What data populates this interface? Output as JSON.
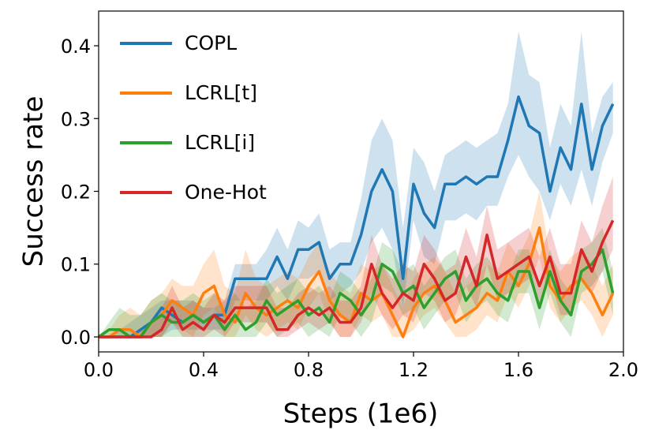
{
  "chart_data": {
    "type": "line",
    "x_label": "Steps (1e6)",
    "y_label": "Success rate",
    "x": [
      0,
      0.04,
      0.08,
      0.12,
      0.16,
      0.2,
      0.24,
      0.28,
      0.32,
      0.36,
      0.4,
      0.44,
      0.48,
      0.52,
      0.56,
      0.6,
      0.64,
      0.68,
      0.72,
      0.76,
      0.8,
      0.84,
      0.88,
      0.92,
      0.96,
      1.0,
      1.04,
      1.08,
      1.12,
      1.16,
      1.2,
      1.24,
      1.28,
      1.32,
      1.36,
      1.4,
      1.44,
      1.48,
      1.52,
      1.56,
      1.6,
      1.64,
      1.68,
      1.72,
      1.76,
      1.8,
      1.84,
      1.88,
      1.92,
      1.96
    ],
    "xlim": [
      0,
      2.0
    ],
    "ylim": [
      -0.0206,
      0.4477
    ],
    "xticks": [
      {
        "value": 0,
        "label": "0.0"
      },
      0.4,
      0.8,
      1.2,
      1.6,
      {
        "value": 2.0,
        "label": "2.0"
      }
    ],
    "yticks": [
      {
        "value": 0,
        "label": "0.0"
      },
      0.1,
      0.2,
      0.3,
      0.4
    ],
    "legend": "upper left",
    "series": [
      {
        "name": "COPL",
        "color": "#1f77b4",
        "values": [
          0,
          0,
          0,
          0,
          0.01,
          0.02,
          0.04,
          0.03,
          0.02,
          0.03,
          0.02,
          0.03,
          0.03,
          0.08,
          0.08,
          0.08,
          0.08,
          0.11,
          0.08,
          0.12,
          0.12,
          0.13,
          0.08,
          0.1,
          0.1,
          0.14,
          0.2,
          0.23,
          0.2,
          0.08,
          0.21,
          0.17,
          0.15,
          0.21,
          0.21,
          0.22,
          0.21,
          0.22,
          0.22,
          0.27,
          0.33,
          0.29,
          0.28,
          0.2,
          0.26,
          0.23,
          0.32,
          0.23,
          0.29,
          0.32
        ],
        "lower": [
          0,
          0,
          0,
          0,
          0,
          0,
          0,
          0.01,
          0.01,
          0.01,
          0.01,
          0.01,
          0.01,
          0.05,
          0.05,
          0.05,
          0.05,
          0.07,
          0.05,
          0.08,
          0.08,
          0.09,
          0.05,
          0.06,
          0.07,
          0.09,
          0.13,
          0.15,
          0.12,
          0.04,
          0.16,
          0.11,
          0.1,
          0.16,
          0.16,
          0.17,
          0.16,
          0.18,
          0.18,
          0.22,
          0.25,
          0.22,
          0.2,
          0.16,
          0.21,
          0.18,
          0.23,
          0.18,
          0.24,
          0.28
        ],
        "upper": [
          0,
          0,
          0.01,
          0.02,
          0.03,
          0.04,
          0.05,
          0.05,
          0.05,
          0.05,
          0.04,
          0.04,
          0.05,
          0.1,
          0.1,
          0.1,
          0.12,
          0.15,
          0.12,
          0.16,
          0.15,
          0.17,
          0.12,
          0.13,
          0.13,
          0.19,
          0.27,
          0.3,
          0.27,
          0.15,
          0.26,
          0.24,
          0.2,
          0.25,
          0.26,
          0.27,
          0.26,
          0.27,
          0.28,
          0.32,
          0.42,
          0.36,
          0.35,
          0.26,
          0.32,
          0.29,
          0.42,
          0.28,
          0.33,
          0.35
        ]
      },
      {
        "name": "LCRL[t]",
        "color": "#ff7f0e",
        "values": [
          0,
          0,
          0.01,
          0.01,
          0,
          0.02,
          0.03,
          0.05,
          0.04,
          0.03,
          0.06,
          0.07,
          0.03,
          0.02,
          0.06,
          0.04,
          0.03,
          0.04,
          0.05,
          0.04,
          0.07,
          0.09,
          0.05,
          0.03,
          0.02,
          0.06,
          0.05,
          0.06,
          0.03,
          0.0,
          0.04,
          0.06,
          0.07,
          0.05,
          0.02,
          0.03,
          0.04,
          0.06,
          0.05,
          0.09,
          0.07,
          0.1,
          0.15,
          0.07,
          0.05,
          0.07,
          0.08,
          0.06,
          0.03,
          0.06
        ],
        "lower": [
          0,
          0,
          0,
          0,
          0,
          0,
          0,
          0.02,
          0.01,
          0,
          0.03,
          0.04,
          0,
          0,
          0.03,
          0.01,
          0,
          0.01,
          0.02,
          0.01,
          0.04,
          0.06,
          0.02,
          0,
          0,
          0.03,
          0.02,
          0.03,
          0,
          0,
          0.01,
          0.03,
          0.04,
          0.02,
          0,
          0,
          0.01,
          0.03,
          0.02,
          0.06,
          0.04,
          0.07,
          0.11,
          0.04,
          0.02,
          0.04,
          0.05,
          0.03,
          0,
          0.03
        ],
        "upper": [
          0,
          0.01,
          0.03,
          0.04,
          0.03,
          0.05,
          0.06,
          0.08,
          0.07,
          0.07,
          0.1,
          0.12,
          0.07,
          0.06,
          0.12,
          0.08,
          0.07,
          0.08,
          0.09,
          0.08,
          0.11,
          0.13,
          0.09,
          0.07,
          0.06,
          0.1,
          0.09,
          0.1,
          0.07,
          0.04,
          0.08,
          0.1,
          0.11,
          0.09,
          0.06,
          0.07,
          0.08,
          0.1,
          0.09,
          0.13,
          0.11,
          0.14,
          0.2,
          0.11,
          0.09,
          0.11,
          0.12,
          0.1,
          0.07,
          0.1
        ]
      },
      {
        "name": "LCRL[i]",
        "color": "#2ca02c",
        "values": [
          0,
          0.01,
          0.01,
          0,
          0,
          0.02,
          0.03,
          0.02,
          0.02,
          0.03,
          0.02,
          0.03,
          0.01,
          0.03,
          0.01,
          0.02,
          0.05,
          0.03,
          0.04,
          0.05,
          0.03,
          0.04,
          0.02,
          0.06,
          0.05,
          0.03,
          0.05,
          0.1,
          0.09,
          0.06,
          0.07,
          0.04,
          0.06,
          0.08,
          0.09,
          0.05,
          0.07,
          0.08,
          0.06,
          0.05,
          0.09,
          0.09,
          0.04,
          0.09,
          0.05,
          0.03,
          0.09,
          0.1,
          0.12,
          0.06
        ],
        "lower": [
          0,
          0,
          0,
          0,
          0,
          0,
          0,
          0,
          0,
          0,
          0,
          0,
          0,
          0,
          0,
          0,
          0.02,
          0,
          0.01,
          0.02,
          0,
          0.01,
          0,
          0.03,
          0.02,
          0,
          0.02,
          0.07,
          0.06,
          0.03,
          0.04,
          0.01,
          0.03,
          0.05,
          0.06,
          0.02,
          0.04,
          0.05,
          0.03,
          0.02,
          0.06,
          0.06,
          0.01,
          0.06,
          0.02,
          0,
          0.06,
          0.07,
          0.09,
          0.03
        ],
        "upper": [
          0,
          0.02,
          0.04,
          0.03,
          0.03,
          0.05,
          0.06,
          0.05,
          0.05,
          0.06,
          0.05,
          0.06,
          0.04,
          0.06,
          0.04,
          0.05,
          0.08,
          0.06,
          0.07,
          0.08,
          0.06,
          0.07,
          0.05,
          0.09,
          0.08,
          0.06,
          0.08,
          0.13,
          0.12,
          0.09,
          0.1,
          0.07,
          0.09,
          0.11,
          0.12,
          0.08,
          0.1,
          0.11,
          0.09,
          0.08,
          0.12,
          0.12,
          0.07,
          0.12,
          0.08,
          0.06,
          0.12,
          0.13,
          0.15,
          0.09
        ]
      },
      {
        "name": "One-Hot",
        "color": "#d62728",
        "values": [
          0,
          0,
          0,
          0,
          0,
          0,
          0.01,
          0.04,
          0.01,
          0.02,
          0.01,
          0.03,
          0.02,
          0.04,
          0.04,
          0.04,
          0.04,
          0.01,
          0.01,
          0.03,
          0.04,
          0.03,
          0.04,
          0.02,
          0.02,
          0.04,
          0.1,
          0.06,
          0.04,
          0.06,
          0.05,
          0.1,
          0.08,
          0.05,
          0.06,
          0.11,
          0.07,
          0.14,
          0.08,
          0.09,
          0.1,
          0.11,
          0.07,
          0.11,
          0.06,
          0.06,
          0.12,
          0.09,
          0.13,
          0.16
        ],
        "lower": [
          0,
          0,
          0,
          0,
          0,
          0,
          0,
          0.02,
          0,
          0,
          0,
          0.01,
          0,
          0.02,
          0.02,
          0.02,
          0.02,
          0,
          0,
          0.01,
          0.02,
          0.01,
          0.02,
          0,
          0,
          0.02,
          0.06,
          0.03,
          0.01,
          0.03,
          0.02,
          0.06,
          0.05,
          0.02,
          0.03,
          0.07,
          0.04,
          0.1,
          0.05,
          0.06,
          0.07,
          0.08,
          0.04,
          0.08,
          0.03,
          0.03,
          0.08,
          0.06,
          0.09,
          0.12
        ],
        "upper": [
          0,
          0,
          0,
          0,
          0.01,
          0.02,
          0.04,
          0.07,
          0.04,
          0.05,
          0.04,
          0.06,
          0.05,
          0.07,
          0.07,
          0.07,
          0.07,
          0.04,
          0.04,
          0.06,
          0.07,
          0.06,
          0.07,
          0.05,
          0.05,
          0.07,
          0.14,
          0.1,
          0.08,
          0.1,
          0.09,
          0.14,
          0.12,
          0.09,
          0.1,
          0.15,
          0.11,
          0.18,
          0.12,
          0.13,
          0.14,
          0.15,
          0.11,
          0.15,
          0.1,
          0.1,
          0.16,
          0.13,
          0.18,
          0.22
        ]
      }
    ]
  }
}
